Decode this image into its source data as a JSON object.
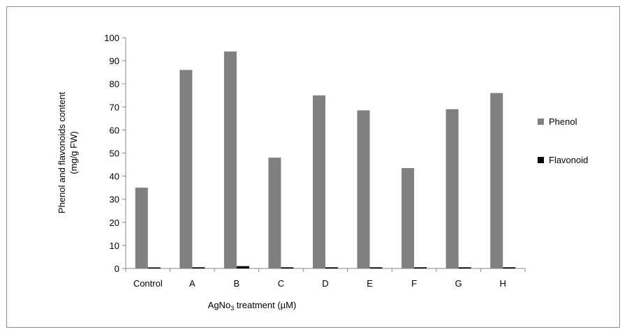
{
  "chart_data": {
    "type": "bar",
    "categories": [
      "Control",
      "A",
      "B",
      "C",
      "D",
      "E",
      "F",
      "G",
      "H"
    ],
    "series": [
      {
        "name": "Phenol",
        "color": "#808080",
        "values": [
          35,
          86,
          94,
          48,
          75,
          68.5,
          43.5,
          69,
          76
        ]
      },
      {
        "name": "Flavonoid",
        "color": "#000000",
        "values": [
          0.4,
          0.5,
          1,
          0.5,
          0.5,
          0.5,
          0.5,
          0.5,
          0.5
        ]
      }
    ],
    "ylabel_line1": "Phenol and flavonoids content",
    "ylabel_line2": "(mg/g FW)",
    "xlabel_prefix": "AgNo",
    "xlabel_sub": "3",
    "xlabel_suffix": " treatment (µM)",
    "ylim": [
      0,
      100
    ],
    "yticks": [
      0,
      10,
      20,
      30,
      40,
      50,
      60,
      70,
      80,
      90,
      100
    ],
    "grid": false,
    "legend_position": "right"
  }
}
